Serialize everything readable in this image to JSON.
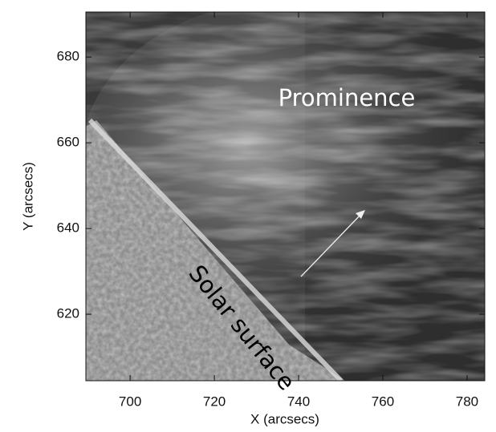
{
  "chart_data": {
    "type": "image",
    "xlabel": "X (arcsecs)",
    "ylabel": "Y (arcsecs)",
    "xlim": [
      689.5,
      784.2
    ],
    "ylim": [
      604.5,
      690.5
    ],
    "xticks": [
      700,
      720,
      740,
      760,
      780
    ],
    "yticks": [
      620,
      640,
      660,
      680
    ],
    "annotations": [
      "Prominence",
      "Solar surface"
    ]
  }
}
